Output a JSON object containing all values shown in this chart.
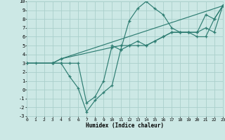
{
  "xlabel": "Humidex (Indice chaleur)",
  "bg_color": "#cce8e5",
  "line_color": "#2e7d72",
  "grid_color": "#aacfcb",
  "xlim": [
    0,
    23
  ],
  "ylim": [
    -3,
    10
  ],
  "xticks": [
    0,
    1,
    2,
    3,
    4,
    5,
    6,
    7,
    8,
    9,
    10,
    11,
    12,
    13,
    14,
    15,
    16,
    17,
    18,
    19,
    20,
    21,
    22,
    23
  ],
  "yticks": [
    -3,
    -2,
    -1,
    0,
    1,
    2,
    3,
    4,
    5,
    6,
    7,
    8,
    9,
    10
  ],
  "series": [
    {
      "x": [
        0,
        1,
        3,
        4,
        5,
        6,
        7,
        8,
        9,
        10,
        11,
        12,
        13,
        14,
        15,
        16,
        17,
        18,
        19,
        20,
        21,
        22,
        23
      ],
      "y": [
        3,
        3,
        3,
        3,
        1.5,
        0.2,
        -2.5,
        -1.2,
        -0.3,
        0.5,
        4.5,
        7.8,
        9.2,
        10,
        9.2,
        8.5,
        7,
        6.5,
        6.5,
        6,
        6,
        8,
        9.5
      ]
    },
    {
      "x": [
        0,
        3,
        4,
        5,
        6,
        7,
        8,
        9,
        10,
        11,
        12,
        13,
        14,
        15,
        16,
        17,
        18,
        19,
        20,
        21,
        22,
        23
      ],
      "y": [
        3,
        3,
        3,
        3,
        3,
        -1.5,
        -0.8,
        1,
        5,
        4.5,
        5,
        5.5,
        5,
        5.5,
        6,
        6.5,
        6.5,
        6.5,
        6.5,
        8.5,
        8,
        9.5
      ]
    },
    {
      "x": [
        0,
        3,
        4,
        10,
        11,
        12,
        13,
        14,
        15,
        16,
        17,
        18,
        19,
        20,
        21,
        22,
        23
      ],
      "y": [
        3,
        3,
        3.5,
        4.8,
        5,
        5,
        5,
        5,
        5.5,
        6,
        6.5,
        6.5,
        6.5,
        6.5,
        7,
        6.5,
        9.5
      ]
    },
    {
      "x": [
        0,
        3,
        4,
        23
      ],
      "y": [
        3,
        3,
        3.5,
        9.5
      ]
    }
  ]
}
